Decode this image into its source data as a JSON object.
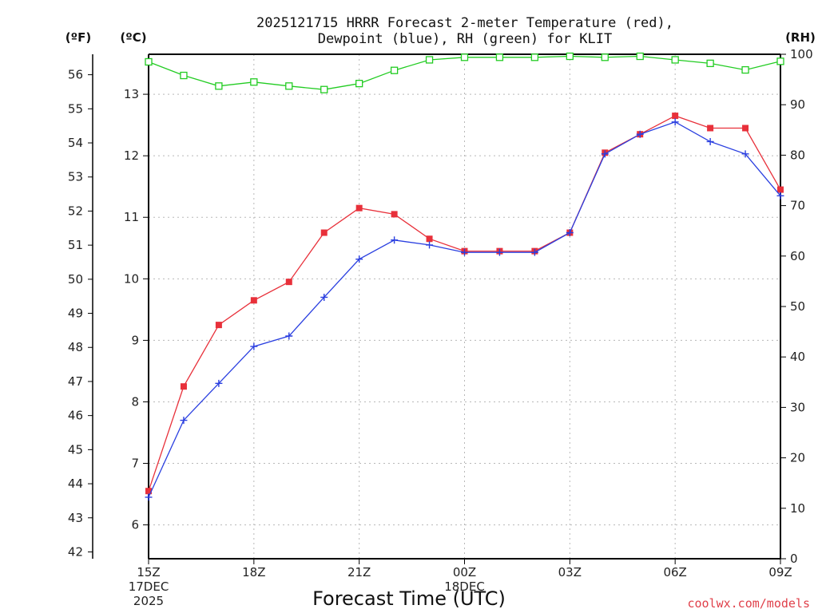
{
  "chart_data": {
    "type": "line",
    "title_lines": [
      "2025121715 HRRR Forecast 2-meter Temperature (red),",
      "Dewpoint (blue), RH (green) for KLIT"
    ],
    "unit_labels": {
      "fahrenheit": "(ºF)",
      "celsius": "(ºC)",
      "rh": "(RH)"
    },
    "xlabel": "Forecast Time (UTC)",
    "credit": "coolwx.com/models",
    "x_hours": [
      0,
      1,
      2,
      3,
      4,
      5,
      6,
      7,
      8,
      9,
      10,
      11,
      12,
      13,
      14,
      15,
      16,
      17,
      18
    ],
    "x_ticks": [
      {
        "hour": 0,
        "lines": [
          "15Z",
          "17DEC",
          "2025"
        ]
      },
      {
        "hour": 3,
        "lines": [
          "18Z"
        ]
      },
      {
        "hour": 6,
        "lines": [
          "21Z"
        ]
      },
      {
        "hour": 9,
        "lines": [
          "00Z",
          "18DEC"
        ]
      },
      {
        "hour": 12,
        "lines": [
          "03Z"
        ]
      },
      {
        "hour": 15,
        "lines": [
          "06Z"
        ]
      },
      {
        "hour": 18,
        "lines": [
          "09Z"
        ]
      }
    ],
    "xlim": [
      0,
      18
    ],
    "celsius_axis": {
      "ylim": [
        5.45,
        13.65
      ],
      "ticks": [
        6,
        7,
        8,
        9,
        10,
        11,
        12,
        13
      ]
    },
    "fahrenheit_axis": {
      "ylim": [
        41.8,
        56.6
      ],
      "ticks": [
        42,
        43,
        44,
        45,
        46,
        47,
        48,
        49,
        50,
        51,
        52,
        53,
        54,
        55,
        56
      ]
    },
    "rh_axis": {
      "ylim": [
        0,
        100
      ],
      "ticks": [
        0,
        10,
        20,
        30,
        40,
        50,
        60,
        70,
        80,
        90,
        100
      ]
    },
    "grid": true,
    "series": [
      {
        "name": "Temperature",
        "axis": "celsius",
        "color": "#e8303a",
        "marker": "filled-square",
        "values": [
          6.55,
          8.25,
          9.25,
          9.65,
          9.95,
          10.75,
          11.15,
          11.05,
          10.65,
          10.45,
          10.45,
          10.45,
          10.75,
          12.05,
          12.35,
          12.65,
          12.45,
          12.45,
          11.45
        ]
      },
      {
        "name": "Dewpoint",
        "axis": "celsius",
        "color": "#2a3fe0",
        "marker": "plus",
        "values": [
          6.45,
          7.7,
          8.3,
          8.9,
          9.07,
          9.7,
          10.32,
          10.63,
          10.55,
          10.43,
          10.43,
          10.43,
          10.75,
          12.03,
          12.35,
          12.55,
          12.23,
          12.03,
          11.35
        ]
      },
      {
        "name": "RH",
        "axis": "rh",
        "color": "#22cc22",
        "marker": "open-square",
        "values": [
          98.5,
          95.8,
          93.7,
          94.5,
          93.7,
          93.0,
          94.2,
          96.8,
          98.9,
          99.4,
          99.4,
          99.4,
          99.6,
          99.4,
          99.6,
          98.9,
          98.2,
          96.9,
          98.6
        ]
      }
    ]
  }
}
